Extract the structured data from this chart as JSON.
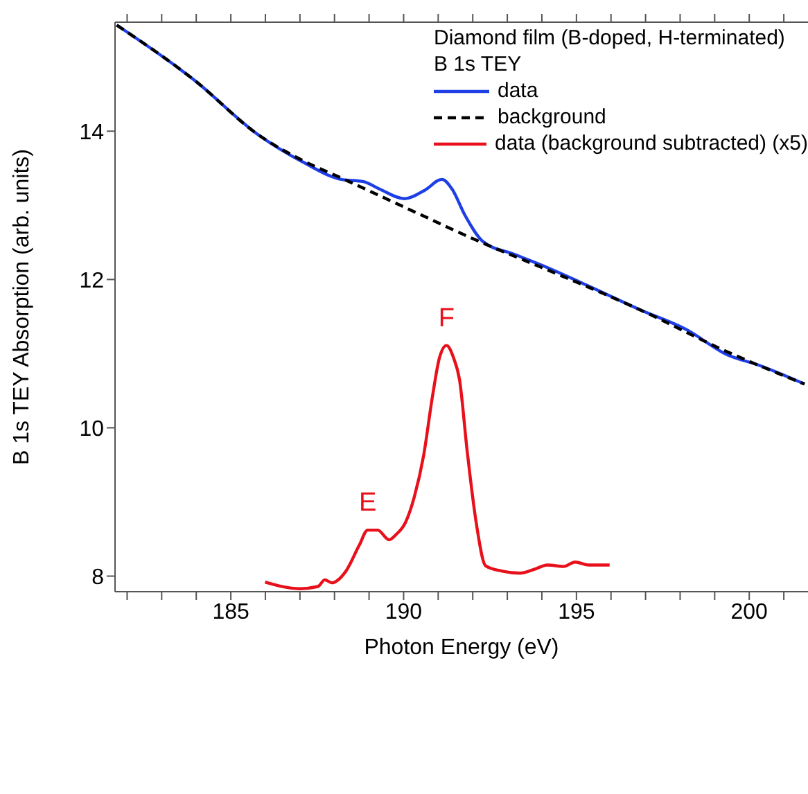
{
  "chart_data": {
    "type": "line",
    "xlabel": "Photon Energy (eV)",
    "ylabel": "B 1s TEY Absorption (arb. units)",
    "legend_title": "Diamond film (B-doped, H-terminated)\nB 1s TEY",
    "xlim": [
      181.65,
      201.7
    ],
    "ylim": [
      7.79,
      15.47
    ],
    "xticks": [
      {
        "value": 182,
        "label": null
      },
      {
        "value": 183,
        "label": null
      },
      {
        "value": 184,
        "label": null
      },
      185,
      {
        "value": 186,
        "label": null
      },
      {
        "value": 187,
        "label": null
      },
      {
        "value": 188,
        "label": null
      },
      {
        "value": 189,
        "label": null
      },
      190,
      {
        "value": 191,
        "label": null
      },
      {
        "value": 192,
        "label": null
      },
      {
        "value": 193,
        "label": null
      },
      {
        "value": 194,
        "label": null
      },
      195,
      {
        "value": 196,
        "label": null
      },
      {
        "value": 197,
        "label": null
      },
      {
        "value": 198,
        "label": null
      },
      {
        "value": 199,
        "label": null
      },
      200,
      {
        "value": 201,
        "label": null
      }
    ],
    "yticks": [
      8,
      10,
      12,
      14
    ],
    "grid": false,
    "legend": "top right",
    "marker": "none",
    "series": [
      {
        "name": "data",
        "color": "#1f3fe6",
        "line_style": "solid",
        "x": [
          181.7,
          183.94,
          185.8,
          187.1,
          188.19,
          188.84,
          189.3,
          190.03,
          190.6,
          191.11,
          191.4,
          191.77,
          192.3,
          193.2,
          194.16,
          195.5,
          196.8,
          198.2,
          199.34,
          200.3,
          201.6
        ],
        "values": [
          15.43,
          14.69,
          13.95,
          13.58,
          13.35,
          13.32,
          13.22,
          13.09,
          13.2,
          13.35,
          13.22,
          12.87,
          12.51,
          12.34,
          12.16,
          11.88,
          11.6,
          11.32,
          10.99,
          10.84,
          10.59
        ]
      },
      {
        "name": "background",
        "color": "#000000",
        "line_style": "dashed",
        "x": [
          181.7,
          183.94,
          185.8,
          187.1,
          188.19,
          190.0,
          192.3,
          194.16,
          196.8,
          199.34,
          201.6
        ],
        "values": [
          15.43,
          14.69,
          13.95,
          13.6,
          13.37,
          12.98,
          12.49,
          12.13,
          11.6,
          11.03,
          10.59
        ]
      },
      {
        "name": "data (background subtracted) (x5)",
        "color": "#e8101a",
        "line_style": "solid",
        "x": [
          185.99,
          186.99,
          187.52,
          187.72,
          187.92,
          188.32,
          188.72,
          188.96,
          189.25,
          189.58,
          189.78,
          190.05,
          190.31,
          190.58,
          190.84,
          191.04,
          191.24,
          191.44,
          191.62,
          191.84,
          192.1,
          192.37,
          192.83,
          193.37,
          193.77,
          194.16,
          194.63,
          194.96,
          195.36,
          195.96
        ],
        "values": [
          7.92,
          7.83,
          7.86,
          7.95,
          7.91,
          8.06,
          8.42,
          8.62,
          8.62,
          8.49,
          8.56,
          8.72,
          9.07,
          9.63,
          10.44,
          10.95,
          11.11,
          10.95,
          10.64,
          9.68,
          8.72,
          8.14,
          8.07,
          8.04,
          8.09,
          8.15,
          8.13,
          8.19,
          8.15,
          8.15
        ]
      }
    ],
    "annotations": [
      {
        "text": "E",
        "x": 188.96,
        "y": 8.62
      },
      {
        "text": "F",
        "x": 191.24,
        "y": 11.11
      }
    ]
  }
}
